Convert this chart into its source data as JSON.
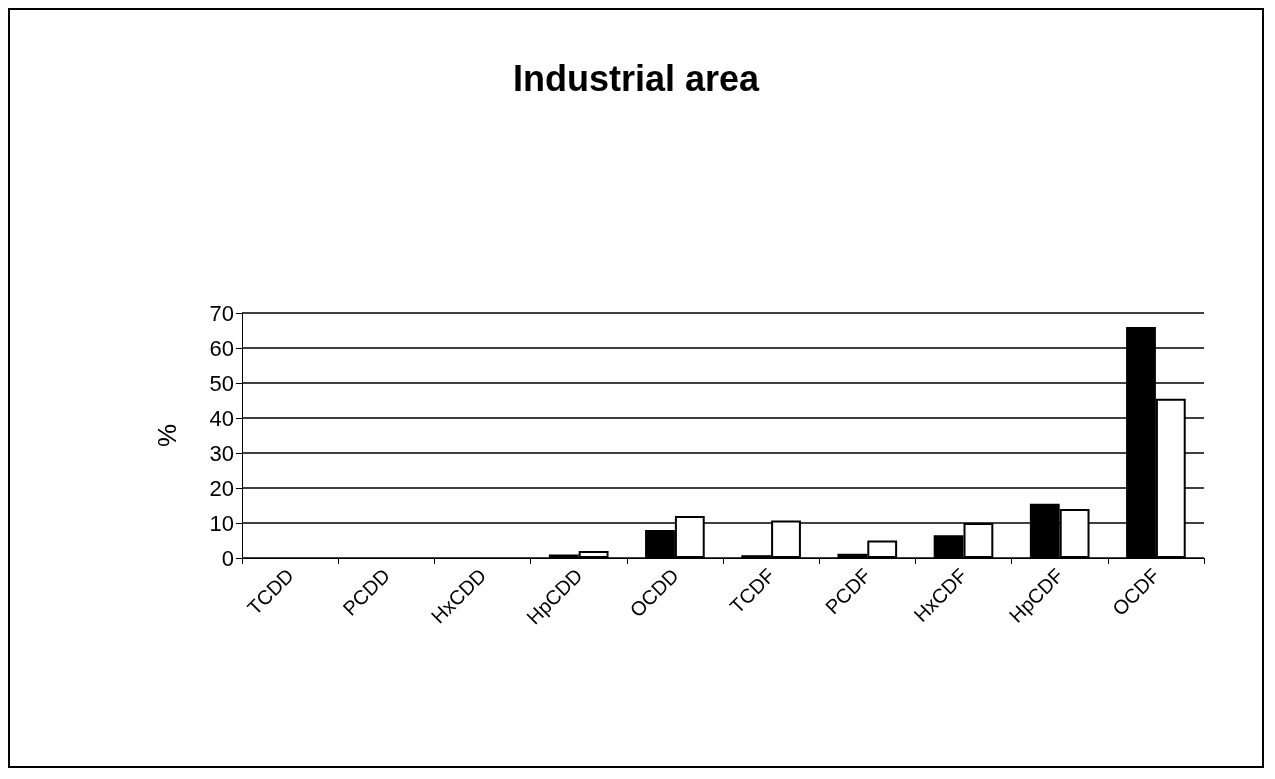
{
  "chart_data": {
    "type": "bar",
    "title": "Industrial area",
    "ylabel": "%",
    "categories": [
      "TCDD",
      "PCDD",
      "HxCDD",
      "HpCDD",
      "OCDD",
      "TCDF",
      "PCDF",
      "HxCDF",
      "HpCDF",
      "OCDF"
    ],
    "series": [
      {
        "color": "#000000",
        "values": [
          0,
          0,
          0,
          1,
          8,
          0.8,
          1.2,
          6.5,
          15.5,
          66
        ]
      },
      {
        "color": "#ffffff",
        "values": [
          0,
          0,
          0,
          2,
          12,
          10.7,
          5,
          10,
          14,
          45.5
        ]
      }
    ],
    "ylim": [
      0,
      70
    ],
    "yticks": [
      0,
      10,
      20,
      30,
      40,
      50,
      60,
      70
    ],
    "grid": "y"
  }
}
